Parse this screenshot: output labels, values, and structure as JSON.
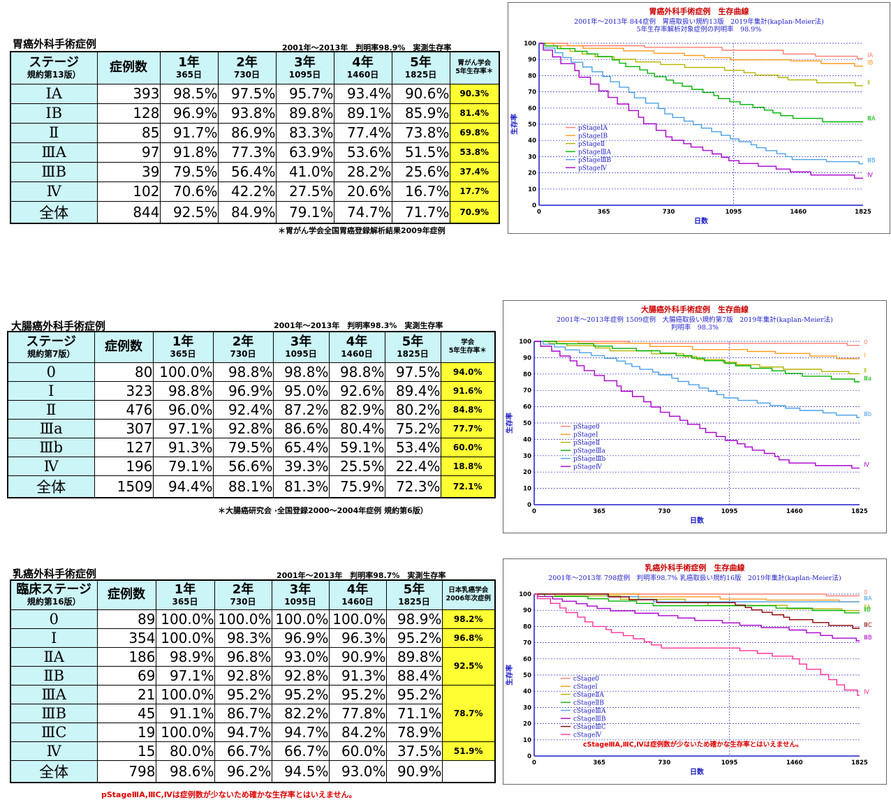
{
  "gastric": {
    "title": "胃癌外科手術症例",
    "subtitle": "2001年～2013年　判明率98.9%　実測生存率",
    "headers": {
      "stage_main": "ステージ",
      "stage_sub": "規約第13版）",
      "cases": "症例数",
      "years": [
        {
          "y": "1年",
          "d": "365日"
        },
        {
          "y": "2年",
          "d": "730日"
        },
        {
          "y": "3年",
          "d": "1095日"
        },
        {
          "y": "4年",
          "d": "1460日"
        },
        {
          "y": "5年",
          "d": "1825日"
        }
      ],
      "society_1": "胃がん学会",
      "society_2": "5年生存率＊"
    },
    "rows": [
      {
        "stage": "ⅠA",
        "n": "393",
        "r": [
          "98.5%",
          "97.5%",
          "95.7%",
          "93.4%",
          "90.6%"
        ],
        "soc": "90.3%"
      },
      {
        "stage": "ⅠB",
        "n": "128",
        "r": [
          "96.9%",
          "93.8%",
          "89.8%",
          "89.1%",
          "85.9%"
        ],
        "soc": "81.4%"
      },
      {
        "stage": "Ⅱ",
        "n": "85",
        "r": [
          "91.7%",
          "86.9%",
          "83.3%",
          "77.4%",
          "73.8%"
        ],
        "soc": "69.8%"
      },
      {
        "stage": "ⅢA",
        "n": "97",
        "r": [
          "91.8%",
          "77.3%",
          "63.9%",
          "53.6%",
          "51.5%"
        ],
        "soc": "53.8%"
      },
      {
        "stage": "ⅢB",
        "n": "39",
        "r": [
          "79.5%",
          "56.4%",
          "41.0%",
          "28.2%",
          "25.6%"
        ],
        "soc": "37.4%"
      },
      {
        "stage": "Ⅳ",
        "n": "102",
        "r": [
          "70.6%",
          "42.2%",
          "27.5%",
          "20.6%",
          "16.7%"
        ],
        "soc": "17.7%"
      },
      {
        "stage": "全体",
        "n": "844",
        "r": [
          "92.5%",
          "84.9%",
          "79.1%",
          "74.7%",
          "71.7%"
        ],
        "soc": "70.9%"
      }
    ],
    "note": "＊胃がん学会全国胃癌登録解析結果2009年症例"
  },
  "colorectal": {
    "title": "大腸癌外科手術症例",
    "subtitle": "2001年～2013年　判明率98.3%　実測生存率",
    "headers": {
      "stage_main": "ステージ",
      "stage_sub": "規約第7版）",
      "cases": "症例数",
      "years": [
        {
          "y": "1年",
          "d": "365日"
        },
        {
          "y": "2年",
          "d": "730日"
        },
        {
          "y": "3年",
          "d": "1095日"
        },
        {
          "y": "4年",
          "d": "1460日"
        },
        {
          "y": "5年",
          "d": "1825日"
        }
      ],
      "society_1": "学会",
      "society_2": "5年生存率＊"
    },
    "rows": [
      {
        "stage": "0",
        "n": "80",
        "r": [
          "100.0%",
          "98.8%",
          "98.8%",
          "98.8%",
          "97.5%"
        ],
        "soc": "94.0%"
      },
      {
        "stage": "Ⅰ",
        "n": "323",
        "r": [
          "98.8%",
          "96.9%",
          "95.0%",
          "92.6%",
          "89.4%"
        ],
        "soc": "91.6%"
      },
      {
        "stage": "Ⅱ",
        "n": "476",
        "r": [
          "96.0%",
          "92.4%",
          "87.2%",
          "82.9%",
          "80.2%"
        ],
        "soc": "84.8%"
      },
      {
        "stage": "Ⅲa",
        "n": "307",
        "r": [
          "97.1%",
          "92.8%",
          "86.6%",
          "80.4%",
          "75.2%"
        ],
        "soc": "77.7%"
      },
      {
        "stage": "Ⅲb",
        "n": "127",
        "r": [
          "91.3%",
          "79.5%",
          "65.4%",
          "59.1%",
          "53.4%"
        ],
        "soc": "60.0%"
      },
      {
        "stage": "Ⅳ",
        "n": "196",
        "r": [
          "79.1%",
          "56.6%",
          "39.3%",
          "25.5%",
          "22.4%"
        ],
        "soc": "18.8%"
      },
      {
        "stage": "全体",
        "n": "1509",
        "r": [
          "94.4%",
          "88.1%",
          "81.3%",
          "75.9%",
          "72.3%"
        ],
        "soc": "72.1%"
      }
    ],
    "note": "＊大腸癌研究会 ·全国登録2000～2004年症例  規約第6版）"
  },
  "breast": {
    "title": "乳癌外科手術症例",
    "subtitle": "2001年～2013年　判明率98.7%　実測生存率",
    "headers": {
      "stage_main": "臨床ステージ",
      "stage_sub": "規約第16版）",
      "cases": "症例数",
      "years": [
        {
          "y": "1年",
          "d": "365日"
        },
        {
          "y": "2年",
          "d": "730日"
        },
        {
          "y": "3年",
          "d": "1095日"
        },
        {
          "y": "4年",
          "d": "1460日"
        },
        {
          "y": "5年",
          "d": "1825日"
        }
      ],
      "society_1": "日本乳癌学会",
      "society_2": "2006年次症例"
    },
    "rows": [
      {
        "stage": "0",
        "n": "89",
        "r": [
          "100.0%",
          "100.0%",
          "100.0%",
          "100.0%",
          "98.9%"
        ]
      },
      {
        "stage": "Ⅰ",
        "n": "354",
        "r": [
          "100.0%",
          "98.3%",
          "96.9%",
          "96.3%",
          "95.2%"
        ]
      },
      {
        "stage": "ⅡA",
        "n": "186",
        "r": [
          "98.9%",
          "96.8%",
          "93.0%",
          "90.9%",
          "89.8%"
        ]
      },
      {
        "stage": "ⅡB",
        "n": "69",
        "r": [
          "97.1%",
          "92.8%",
          "92.8%",
          "91.3%",
          "88.4%"
        ]
      },
      {
        "stage": "ⅢA",
        "n": "21",
        "r": [
          "100.0%",
          "95.2%",
          "95.2%",
          "95.2%",
          "95.2%"
        ]
      },
      {
        "stage": "ⅢB",
        "n": "45",
        "r": [
          "91.1%",
          "86.7%",
          "82.2%",
          "77.8%",
          "71.1%"
        ]
      },
      {
        "stage": "ⅢC",
        "n": "19",
        "r": [
          "100.0%",
          "94.7%",
          "94.7%",
          "84.2%",
          "78.9%"
        ]
      },
      {
        "stage": "Ⅳ",
        "n": "15",
        "r": [
          "80.0%",
          "66.7%",
          "66.7%",
          "60.0%",
          "37.5%"
        ]
      },
      {
        "stage": "全体",
        "n": "798",
        "r": [
          "98.6%",
          "96.2%",
          "94.5%",
          "93.0%",
          "90.9%"
        ]
      }
    ],
    "society": [
      "98.2%",
      "96.8%",
      "92.5%",
      "78.7%",
      "51.9%"
    ],
    "note": "pStageⅢA,ⅢC,Ⅳは症例数が少ないため確かな生存率とはいえません。"
  },
  "chart_data": [
    {
      "type": "line",
      "title": "胃癌外科手術症例　生存曲線",
      "subtitle_lines": [
        "2001年～2013年 844症例　胃癌取扱い規約13版　2019年集計(kaplan-Meier法)",
        "5年生存率解析対象症例の判明率　98.9%"
      ],
      "subtitle_color": "#2222cc",
      "xlabel": "日数",
      "ylabel": "生存率",
      "x_ticks": [
        0,
        365,
        730,
        1095,
        1460,
        1825
      ],
      "y_ticks": [
        0,
        10,
        20,
        30,
        40,
        50,
        60,
        70,
        80,
        90,
        100
      ],
      "xlim": [
        0,
        1825
      ],
      "ylim": [
        0,
        100
      ],
      "series": [
        {
          "name": "pStageⅠA",
          "end_label": "ⅠA",
          "color": "#ff7f6e",
          "x": [
            0,
            365,
            730,
            1095,
            1460,
            1825
          ],
          "y": [
            100,
            98.5,
            97.5,
            95.7,
            93.4,
            90.6
          ]
        },
        {
          "name": "pStageⅠB",
          "end_label": "ⅠB",
          "color": "#ff9a1e",
          "x": [
            0,
            365,
            730,
            1095,
            1460,
            1825
          ],
          "y": [
            100,
            96.9,
            93.8,
            89.8,
            89.1,
            85.9
          ]
        },
        {
          "name": "pStageⅡ",
          "end_label": "Ⅱ",
          "color": "#b4b400",
          "x": [
            0,
            365,
            730,
            1095,
            1460,
            1825
          ],
          "y": [
            100,
            91.7,
            86.9,
            83.3,
            77.4,
            73.8
          ]
        },
        {
          "name": "pStageⅢA",
          "end_label": "ⅢA",
          "color": "#00b400",
          "x": [
            0,
            365,
            730,
            1095,
            1460,
            1825
          ],
          "y": [
            100,
            91.8,
            77.3,
            63.9,
            53.6,
            51.5
          ]
        },
        {
          "name": "pStageⅢB",
          "end_label": "ⅢB",
          "color": "#4aa0e6",
          "x": [
            0,
            365,
            730,
            1095,
            1460,
            1825
          ],
          "y": [
            100,
            79.5,
            56.4,
            41.0,
            28.2,
            25.6
          ]
        },
        {
          "name": "pStageⅣ",
          "end_label": "Ⅳ",
          "color": "#aa00cc",
          "x": [
            0,
            365,
            730,
            1095,
            1460,
            1825
          ],
          "y": [
            100,
            70.6,
            42.2,
            27.5,
            20.6,
            16.7
          ]
        }
      ]
    },
    {
      "type": "line",
      "title": "大腸癌外科手術症例　生存曲線",
      "subtitle_lines": [
        "2001年～2013年症例 1509症例　大腸癌取扱い規約第7版　2019年集計(kaplan-Meier法)",
        "判明率　98.3%"
      ],
      "subtitle_color": "#2222cc",
      "xlabel": "日数",
      "ylabel": "生存率",
      "x_ticks": [
        0,
        365,
        730,
        1095,
        1460,
        1825
      ],
      "y_ticks": [
        0,
        10,
        20,
        30,
        40,
        50,
        60,
        70,
        80,
        90,
        100
      ],
      "xlim": [
        0,
        1825
      ],
      "ylim": [
        0,
        100
      ],
      "series": [
        {
          "name": "pStage0",
          "end_label": "0",
          "color": "#ff7f6e",
          "x": [
            0,
            365,
            730,
            1095,
            1460,
            1825
          ],
          "y": [
            100,
            100,
            98.8,
            98.8,
            98.8,
            97.5
          ]
        },
        {
          "name": "pStageⅠ",
          "end_label": "Ⅰ",
          "color": "#ff9a1e",
          "x": [
            0,
            365,
            730,
            1095,
            1460,
            1825
          ],
          "y": [
            100,
            98.8,
            96.9,
            95.0,
            92.6,
            89.4
          ]
        },
        {
          "name": "pStageⅡ",
          "end_label": "Ⅱ",
          "color": "#b4b400",
          "x": [
            0,
            365,
            730,
            1095,
            1460,
            1825
          ],
          "y": [
            100,
            96.0,
            92.4,
            87.2,
            82.9,
            80.2
          ]
        },
        {
          "name": "pStageⅢa",
          "end_label": "Ⅲa",
          "color": "#00b400",
          "x": [
            0,
            365,
            730,
            1095,
            1460,
            1825
          ],
          "y": [
            100,
            97.1,
            92.8,
            86.6,
            80.4,
            75.2
          ]
        },
        {
          "name": "pStageⅢb",
          "end_label": "Ⅲb",
          "color": "#4aa0e6",
          "x": [
            0,
            365,
            730,
            1095,
            1460,
            1825
          ],
          "y": [
            100,
            91.3,
            79.5,
            65.4,
            59.1,
            53.4
          ]
        },
        {
          "name": "pStageⅣ",
          "end_label": "Ⅳ",
          "color": "#aa00cc",
          "x": [
            0,
            365,
            730,
            1095,
            1460,
            1825
          ],
          "y": [
            100,
            79.1,
            56.6,
            39.3,
            25.5,
            22.4
          ]
        }
      ]
    },
    {
      "type": "line",
      "title": "乳癌外科手術症例　生存曲線",
      "subtitle_lines": [
        "2001年～2013年 798症例　判明率98.7%  乳癌取扱い規約16版　2019年集計(kaplan-Meier法)"
      ],
      "subtitle_color": "#2222cc",
      "xlabel": "日数",
      "ylabel": "生存率",
      "x_ticks": [
        0,
        365,
        730,
        1095,
        1460,
        1825
      ],
      "y_ticks": [
        0,
        10,
        20,
        30,
        40,
        50,
        60,
        70,
        80,
        90,
        100
      ],
      "xlim": [
        0,
        1825
      ],
      "ylim": [
        0,
        100
      ],
      "series": [
        {
          "name": "cStage0",
          "end_label": "0",
          "color": "#ff7f6e",
          "x": [
            0,
            365,
            730,
            1095,
            1460,
            1825
          ],
          "y": [
            100,
            100,
            100,
            100,
            100,
            98.9
          ]
        },
        {
          "name": "cStageⅠ",
          "end_label": "",
          "color": "#ff9a1e",
          "x": [
            0,
            365,
            730,
            1095,
            1460,
            1825
          ],
          "y": [
            100,
            100,
            98.3,
            96.9,
            96.3,
            95.2
          ]
        },
        {
          "name": "cStageⅡA",
          "end_label": "ⅡA",
          "color": "#b4b400",
          "x": [
            0,
            365,
            730,
            1095,
            1460,
            1825
          ],
          "y": [
            100,
            98.9,
            96.8,
            93.0,
            90.9,
            89.8
          ]
        },
        {
          "name": "cStageⅡB",
          "end_label": "ⅡB",
          "color": "#00b400",
          "x": [
            0,
            365,
            730,
            1095,
            1460,
            1825
          ],
          "y": [
            100,
            97.1,
            92.8,
            92.8,
            91.3,
            88.4
          ]
        },
        {
          "name": "cStageⅢA",
          "end_label": "ⅢA",
          "color": "#4aa0e6",
          "x": [
            0,
            365,
            730,
            1095,
            1460,
            1825
          ],
          "y": [
            100,
            100,
            95.2,
            95.2,
            95.2,
            95.2
          ]
        },
        {
          "name": "cStageⅢB",
          "end_label": "ⅢB",
          "color": "#aa00cc",
          "x": [
            0,
            365,
            730,
            1095,
            1460,
            1825
          ],
          "y": [
            100,
            91.1,
            86.7,
            82.2,
            77.8,
            71.1
          ]
        },
        {
          "name": "cStageⅢC",
          "end_label": "ⅢC",
          "color": "#8b0000",
          "x": [
            0,
            365,
            730,
            1095,
            1460,
            1825
          ],
          "y": [
            100,
            100,
            94.7,
            94.7,
            84.2,
            78.9
          ]
        },
        {
          "name": "cStageⅣ",
          "end_label": "Ⅳ",
          "color": "#ff3399",
          "x": [
            0,
            365,
            730,
            1095,
            1460,
            1825
          ],
          "y": [
            100,
            80.0,
            66.7,
            66.7,
            60.0,
            37.5
          ]
        }
      ],
      "annotation": "cStageⅢA,ⅢC,Ⅳは症例数が少ないため確かな生存率とはいえません。",
      "annotation_color": "#e00000"
    }
  ]
}
